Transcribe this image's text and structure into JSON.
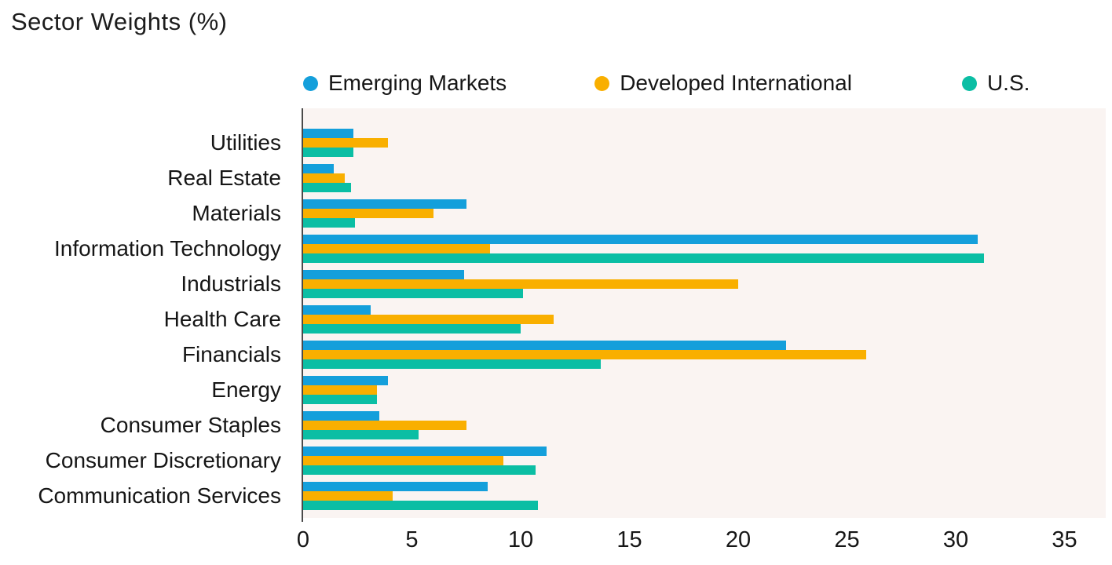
{
  "title": "Sector Weights (%)",
  "colors": {
    "emerging_markets": "#149FDB",
    "developed_international": "#F9AF00",
    "us": "#0BBEA4",
    "plot_background": "#FAF4F2",
    "axis_line": "#4a4a4a",
    "text": "#161616"
  },
  "chart_data": {
    "type": "bar",
    "orientation": "horizontal",
    "title": "Sector Weights (%)",
    "xlabel": "",
    "ylabel": "",
    "xlim": [
      0,
      35
    ],
    "x_ticks": [
      0,
      5,
      10,
      15,
      20,
      25,
      30,
      35
    ],
    "grid": false,
    "legend_position": "top",
    "categories": [
      "Utilities",
      "Real Estate",
      "Materials",
      "Information Technology",
      "Industrials",
      "Health Care",
      "Financials",
      "Energy",
      "Consumer Staples",
      "Consumer Discretionary",
      "Communication Services"
    ],
    "series": [
      {
        "name": "Emerging Markets",
        "color": "#149FDB",
        "values": [
          2.3,
          1.4,
          7.5,
          31.0,
          7.4,
          3.1,
          22.2,
          3.9,
          3.5,
          11.2,
          8.5
        ]
      },
      {
        "name": "Developed International",
        "color": "#F9AF00",
        "values": [
          3.9,
          1.9,
          6.0,
          8.6,
          20.0,
          11.5,
          25.9,
          3.4,
          7.5,
          9.2,
          4.1
        ]
      },
      {
        "name": "U.S.",
        "color": "#0BBEA4",
        "values": [
          2.3,
          2.2,
          2.4,
          31.3,
          10.1,
          10.0,
          13.7,
          3.4,
          5.3,
          10.7,
          10.8
        ]
      }
    ]
  }
}
